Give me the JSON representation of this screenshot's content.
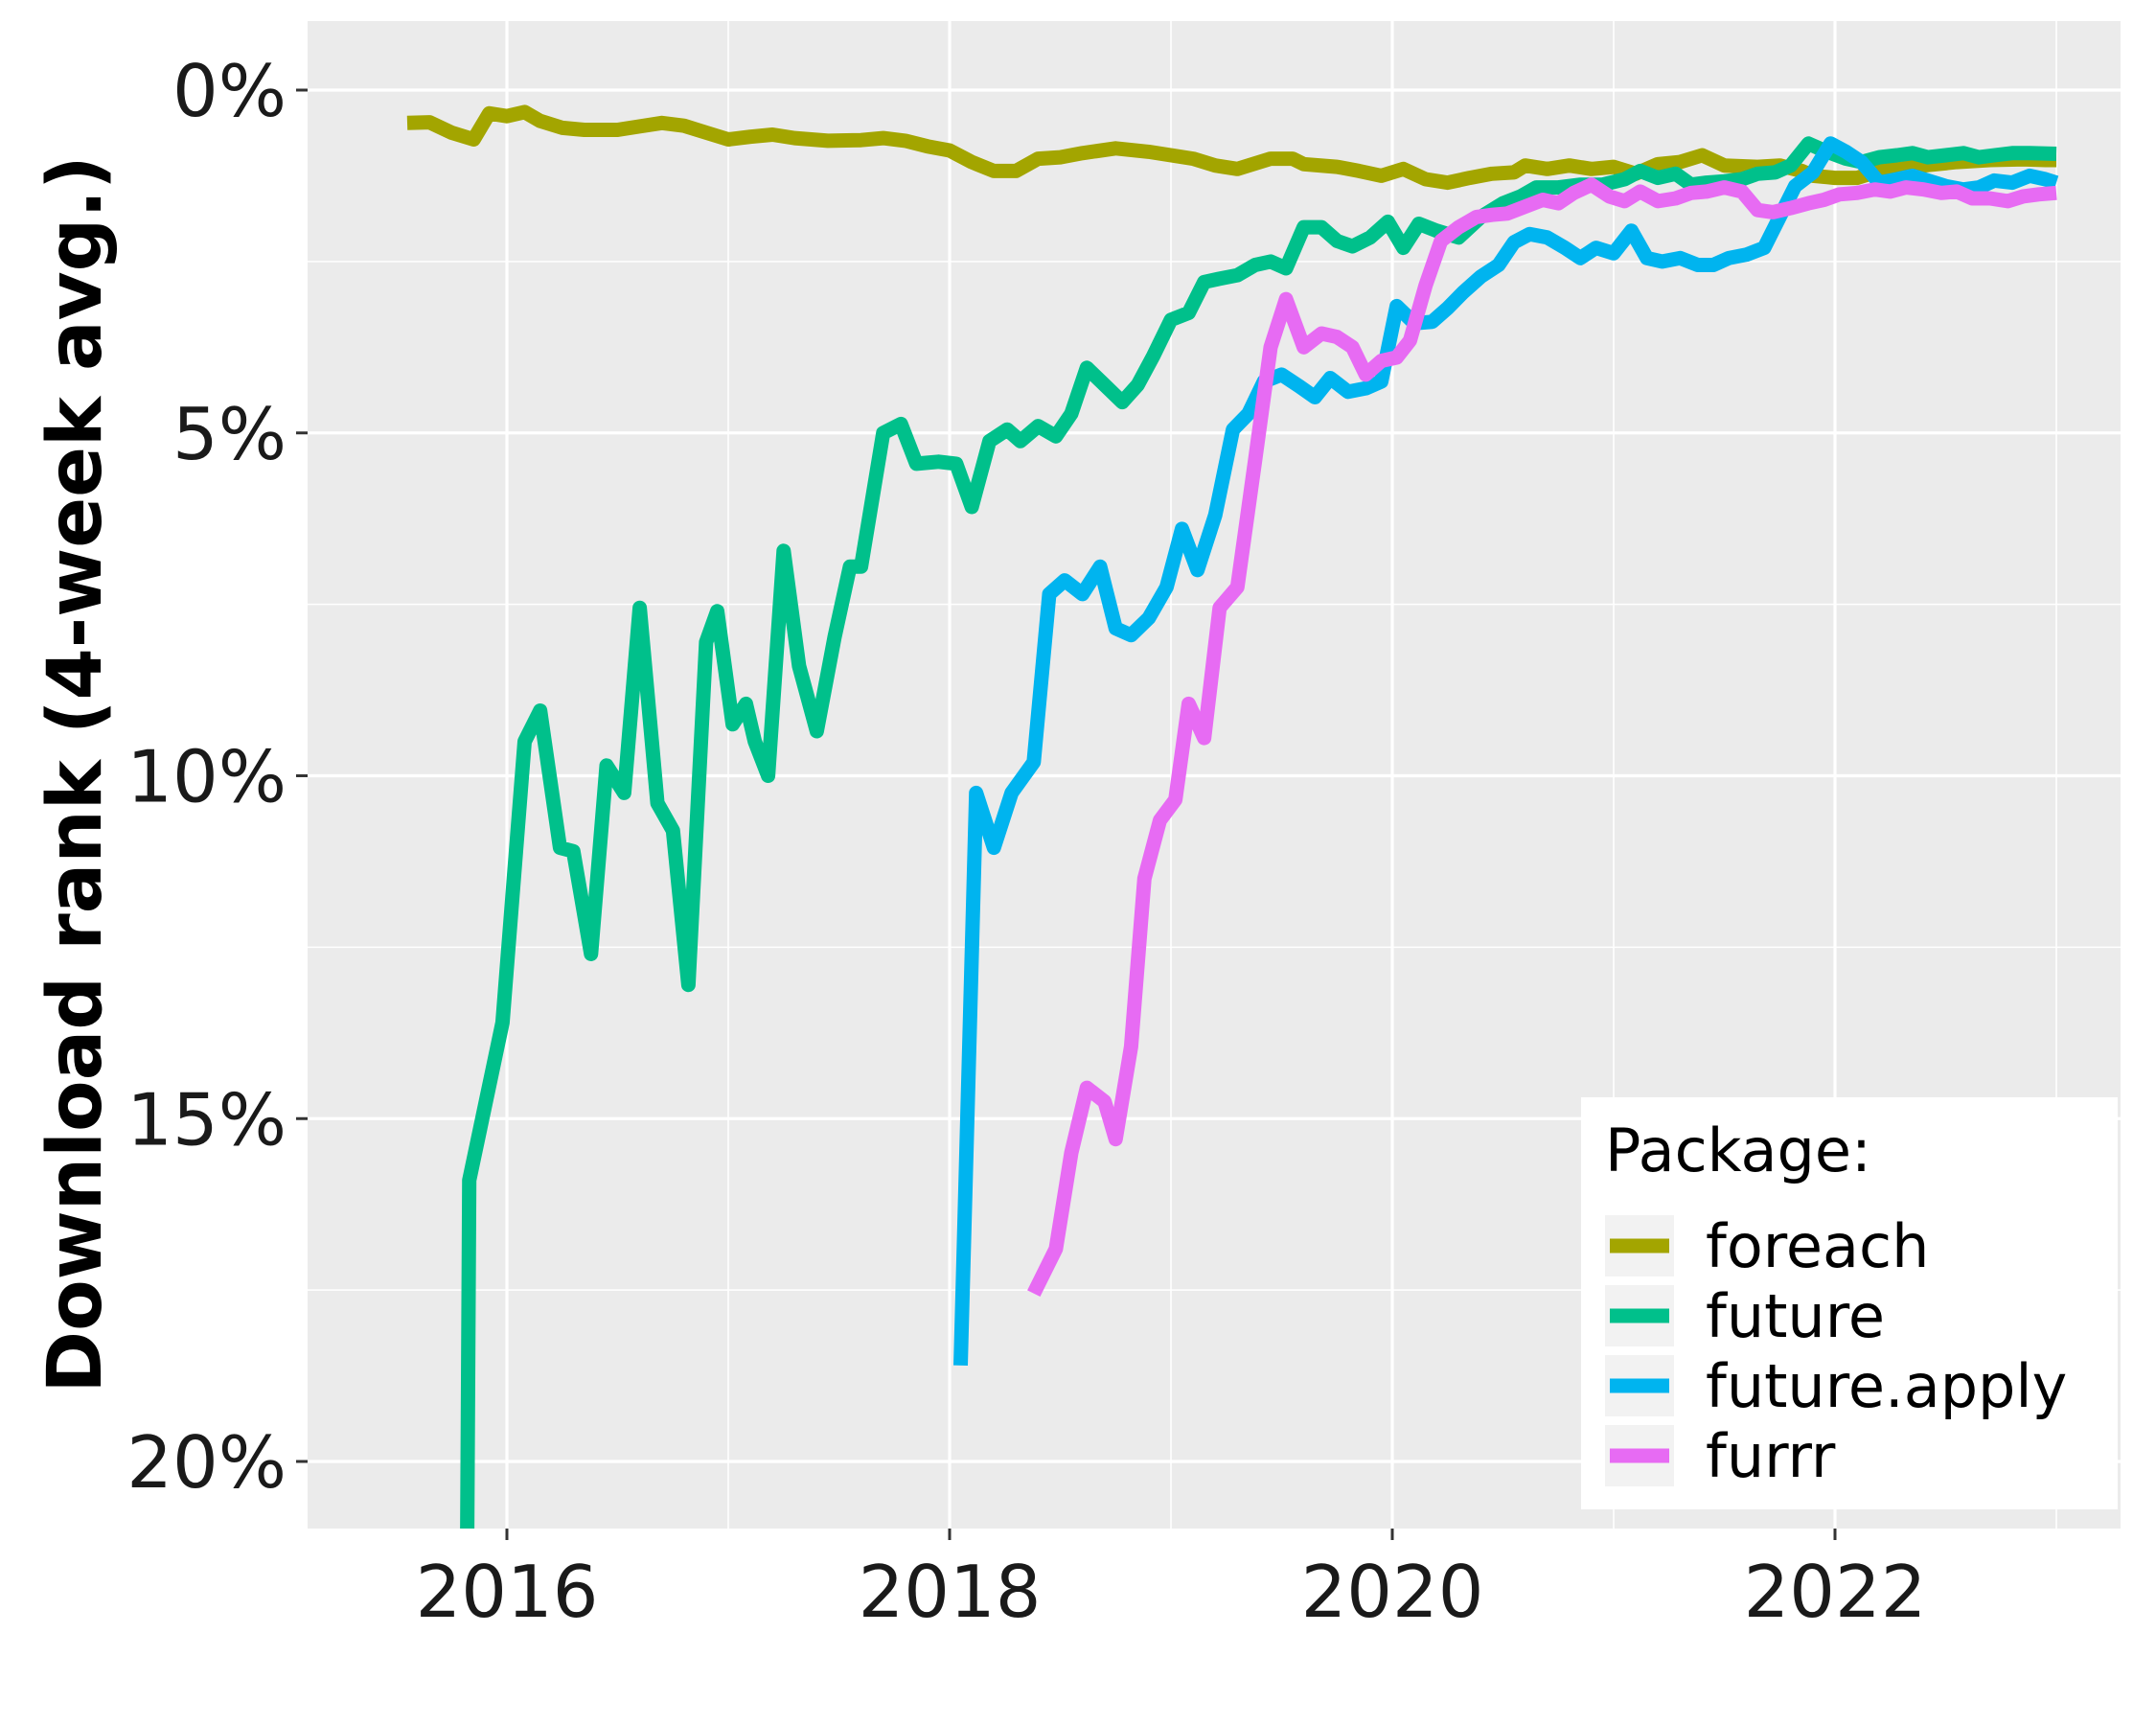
{
  "chart_data": {
    "type": "line",
    "title": "",
    "xlabel": "",
    "ylabel": "Download rank (4-week avg.)",
    "x_ticks": [
      "2016",
      "2018",
      "2020",
      "2022"
    ],
    "y_ticks": [
      "0%",
      "5%",
      "10%",
      "15%",
      "20%"
    ],
    "xlim": [
      2015.09,
      2023.27
    ],
    "ylim": [
      0,
      20
    ],
    "y_reversed": true,
    "grid": true,
    "legend": {
      "title": "Package:",
      "position": "bottom-right"
    },
    "series": [
      {
        "name": "foreach",
        "color": "#a3a500",
        "points": [
          [
            2015.55,
            0.48
          ],
          [
            2015.65,
            0.47
          ],
          [
            2015.75,
            0.62
          ],
          [
            2015.85,
            0.72
          ],
          [
            2015.92,
            0.34
          ],
          [
            2016.0,
            0.38
          ],
          [
            2016.08,
            0.32
          ],
          [
            2016.15,
            0.45
          ],
          [
            2016.25,
            0.55
          ],
          [
            2016.35,
            0.58
          ],
          [
            2016.5,
            0.58
          ],
          [
            2016.6,
            0.53
          ],
          [
            2016.7,
            0.48
          ],
          [
            2016.8,
            0.52
          ],
          [
            2016.9,
            0.62
          ],
          [
            2017.0,
            0.72
          ],
          [
            2017.1,
            0.68
          ],
          [
            2017.2,
            0.65
          ],
          [
            2017.3,
            0.7
          ],
          [
            2017.45,
            0.74
          ],
          [
            2017.6,
            0.73
          ],
          [
            2017.7,
            0.7
          ],
          [
            2017.8,
            0.74
          ],
          [
            2017.9,
            0.82
          ],
          [
            2018.0,
            0.88
          ],
          [
            2018.1,
            1.05
          ],
          [
            2018.2,
            1.18
          ],
          [
            2018.3,
            1.18
          ],
          [
            2018.4,
            1.0
          ],
          [
            2018.5,
            0.98
          ],
          [
            2018.6,
            0.92
          ],
          [
            2018.75,
            0.85
          ],
          [
            2018.9,
            0.9
          ],
          [
            2019.0,
            0.95
          ],
          [
            2019.1,
            1.0
          ],
          [
            2019.2,
            1.1
          ],
          [
            2019.3,
            1.15
          ],
          [
            2019.45,
            1.0
          ],
          [
            2019.55,
            1.0
          ],
          [
            2019.6,
            1.08
          ],
          [
            2019.75,
            1.12
          ],
          [
            2019.85,
            1.18
          ],
          [
            2019.95,
            1.25
          ],
          [
            2020.05,
            1.15
          ],
          [
            2020.15,
            1.3
          ],
          [
            2020.25,
            1.35
          ],
          [
            2020.35,
            1.28
          ],
          [
            2020.45,
            1.22
          ],
          [
            2020.55,
            1.2
          ],
          [
            2020.6,
            1.1
          ],
          [
            2020.7,
            1.15
          ],
          [
            2020.8,
            1.1
          ],
          [
            2020.9,
            1.15
          ],
          [
            2021.0,
            1.12
          ],
          [
            2021.1,
            1.22
          ],
          [
            2021.2,
            1.08
          ],
          [
            2021.3,
            1.05
          ],
          [
            2021.4,
            0.95
          ],
          [
            2021.5,
            1.1
          ],
          [
            2021.65,
            1.12
          ],
          [
            2021.75,
            1.1
          ],
          [
            2021.85,
            1.18
          ],
          [
            2021.9,
            1.25
          ],
          [
            2022.0,
            1.28
          ],
          [
            2022.1,
            1.28
          ],
          [
            2022.2,
            1.18
          ],
          [
            2022.3,
            1.15
          ],
          [
            2022.4,
            1.1
          ],
          [
            2022.55,
            1.05
          ],
          [
            2022.7,
            1.02
          ],
          [
            2022.85,
            1.01
          ],
          [
            2022.95,
            1.02
          ],
          [
            2023.0,
            1.02
          ]
        ]
      },
      {
        "name": "future",
        "color": "#00c08b",
        "points": [
          [
            2015.82,
            21.5
          ],
          [
            2015.83,
            15.9
          ],
          [
            2015.98,
            13.6
          ],
          [
            2016.08,
            9.5
          ],
          [
            2016.15,
            9.05
          ],
          [
            2016.24,
            11.05
          ],
          [
            2016.3,
            11.1
          ],
          [
            2016.38,
            12.6
          ],
          [
            2016.45,
            9.85
          ],
          [
            2016.53,
            10.25
          ],
          [
            2016.6,
            7.55
          ],
          [
            2016.68,
            10.4
          ],
          [
            2016.75,
            10.8
          ],
          [
            2016.82,
            13.05
          ],
          [
            2016.9,
            8.05
          ],
          [
            2016.95,
            7.6
          ],
          [
            2017.02,
            9.25
          ],
          [
            2017.08,
            8.95
          ],
          [
            2017.12,
            9.5
          ],
          [
            2017.18,
            10.0
          ],
          [
            2017.25,
            6.72
          ],
          [
            2017.32,
            8.4
          ],
          [
            2017.4,
            9.35
          ],
          [
            2017.48,
            7.98
          ],
          [
            2017.55,
            6.95
          ],
          [
            2017.6,
            6.95
          ],
          [
            2017.7,
            5.0
          ],
          [
            2017.78,
            4.87
          ],
          [
            2017.85,
            5.45
          ],
          [
            2017.95,
            5.42
          ],
          [
            2018.03,
            5.45
          ],
          [
            2018.1,
            6.08
          ],
          [
            2018.18,
            5.12
          ],
          [
            2018.26,
            4.95
          ],
          [
            2018.32,
            5.12
          ],
          [
            2018.4,
            4.9
          ],
          [
            2018.48,
            5.05
          ],
          [
            2018.55,
            4.72
          ],
          [
            2018.62,
            4.05
          ],
          [
            2018.7,
            4.3
          ],
          [
            2018.78,
            4.55
          ],
          [
            2018.85,
            4.3
          ],
          [
            2018.92,
            3.88
          ],
          [
            2019.0,
            3.35
          ],
          [
            2019.08,
            3.25
          ],
          [
            2019.15,
            2.8
          ],
          [
            2019.22,
            2.75
          ],
          [
            2019.3,
            2.7
          ],
          [
            2019.38,
            2.55
          ],
          [
            2019.45,
            2.5
          ],
          [
            2019.52,
            2.6
          ],
          [
            2019.6,
            2.0
          ],
          [
            2019.68,
            2.0
          ],
          [
            2019.75,
            2.2
          ],
          [
            2019.82,
            2.28
          ],
          [
            2019.9,
            2.15
          ],
          [
            2019.98,
            1.92
          ],
          [
            2020.05,
            2.3
          ],
          [
            2020.12,
            1.95
          ],
          [
            2020.2,
            2.05
          ],
          [
            2020.3,
            2.15
          ],
          [
            2020.4,
            1.85
          ],
          [
            2020.5,
            1.65
          ],
          [
            2020.58,
            1.55
          ],
          [
            2020.65,
            1.42
          ],
          [
            2020.75,
            1.42
          ],
          [
            2020.85,
            1.38
          ],
          [
            2020.95,
            1.38
          ],
          [
            2021.05,
            1.3
          ],
          [
            2021.12,
            1.18
          ],
          [
            2021.2,
            1.28
          ],
          [
            2021.28,
            1.22
          ],
          [
            2021.35,
            1.38
          ],
          [
            2021.42,
            1.35
          ],
          [
            2021.5,
            1.33
          ],
          [
            2021.58,
            1.3
          ],
          [
            2021.65,
            1.22
          ],
          [
            2021.73,
            1.2
          ],
          [
            2021.8,
            1.1
          ],
          [
            2021.88,
            0.78
          ],
          [
            2021.95,
            0.88
          ],
          [
            2022.05,
            1.0
          ],
          [
            2022.12,
            1.05
          ],
          [
            2022.2,
            0.98
          ],
          [
            2022.28,
            0.95
          ],
          [
            2022.35,
            0.92
          ],
          [
            2022.42,
            0.98
          ],
          [
            2022.5,
            0.95
          ],
          [
            2022.58,
            0.92
          ],
          [
            2022.65,
            0.98
          ],
          [
            2022.72,
            0.95
          ],
          [
            2022.8,
            0.92
          ],
          [
            2022.88,
            0.92
          ],
          [
            2023.0,
            0.93
          ]
        ]
      },
      {
        "name": "future.apply",
        "color": "#00b4ef",
        "points": [
          [
            2018.05,
            18.6
          ],
          [
            2018.12,
            10.25
          ],
          [
            2018.2,
            11.05
          ],
          [
            2018.28,
            10.25
          ],
          [
            2018.38,
            9.8
          ],
          [
            2018.45,
            7.35
          ],
          [
            2018.52,
            7.15
          ],
          [
            2018.6,
            7.35
          ],
          [
            2018.68,
            6.95
          ],
          [
            2018.75,
            7.85
          ],
          [
            2018.82,
            7.95
          ],
          [
            2018.9,
            7.7
          ],
          [
            2018.98,
            7.25
          ],
          [
            2019.05,
            6.4
          ],
          [
            2019.12,
            7.0
          ],
          [
            2019.2,
            6.2
          ],
          [
            2019.28,
            4.95
          ],
          [
            2019.35,
            4.72
          ],
          [
            2019.42,
            4.25
          ],
          [
            2019.5,
            4.15
          ],
          [
            2019.58,
            4.32
          ],
          [
            2019.65,
            4.48
          ],
          [
            2019.72,
            4.2
          ],
          [
            2019.8,
            4.4
          ],
          [
            2019.88,
            4.35
          ],
          [
            2019.95,
            4.25
          ],
          [
            2020.02,
            3.15
          ],
          [
            2020.1,
            3.4
          ],
          [
            2020.18,
            3.38
          ],
          [
            2020.25,
            3.18
          ],
          [
            2020.32,
            2.95
          ],
          [
            2020.4,
            2.72
          ],
          [
            2020.48,
            2.55
          ],
          [
            2020.55,
            2.22
          ],
          [
            2020.62,
            2.1
          ],
          [
            2020.7,
            2.15
          ],
          [
            2020.78,
            2.3
          ],
          [
            2020.85,
            2.45
          ],
          [
            2020.92,
            2.3
          ],
          [
            2021.0,
            2.38
          ],
          [
            2021.08,
            2.05
          ],
          [
            2021.15,
            2.45
          ],
          [
            2021.22,
            2.5
          ],
          [
            2021.3,
            2.45
          ],
          [
            2021.38,
            2.55
          ],
          [
            2021.45,
            2.55
          ],
          [
            2021.52,
            2.45
          ],
          [
            2021.6,
            2.4
          ],
          [
            2021.68,
            2.3
          ],
          [
            2021.75,
            1.85
          ],
          [
            2021.82,
            1.4
          ],
          [
            2021.9,
            1.2
          ],
          [
            2021.98,
            0.78
          ],
          [
            2022.05,
            0.9
          ],
          [
            2022.12,
            1.05
          ],
          [
            2022.2,
            1.35
          ],
          [
            2022.28,
            1.3
          ],
          [
            2022.35,
            1.25
          ],
          [
            2022.42,
            1.32
          ],
          [
            2022.5,
            1.4
          ],
          [
            2022.58,
            1.45
          ],
          [
            2022.65,
            1.42
          ],
          [
            2022.72,
            1.32
          ],
          [
            2022.8,
            1.35
          ],
          [
            2022.88,
            1.25
          ],
          [
            2022.95,
            1.3
          ],
          [
            2023.0,
            1.35
          ]
        ]
      },
      {
        "name": "furrr",
        "color": "#e76bf3",
        "points": [
          [
            2018.38,
            17.55
          ],
          [
            2018.48,
            16.9
          ],
          [
            2018.55,
            15.5
          ],
          [
            2018.62,
            14.55
          ],
          [
            2018.7,
            14.75
          ],
          [
            2018.75,
            15.3
          ],
          [
            2018.82,
            13.95
          ],
          [
            2018.88,
            11.5
          ],
          [
            2018.95,
            10.65
          ],
          [
            2019.02,
            10.35
          ],
          [
            2019.08,
            8.95
          ],
          [
            2019.15,
            9.45
          ],
          [
            2019.22,
            7.55
          ],
          [
            2019.3,
            7.25
          ],
          [
            2019.38,
            5.4
          ],
          [
            2019.45,
            3.75
          ],
          [
            2019.52,
            3.05
          ],
          [
            2019.6,
            3.75
          ],
          [
            2019.68,
            3.55
          ],
          [
            2019.75,
            3.6
          ],
          [
            2019.82,
            3.75
          ],
          [
            2019.88,
            4.15
          ],
          [
            2019.95,
            3.95
          ],
          [
            2020.02,
            3.9
          ],
          [
            2020.08,
            3.65
          ],
          [
            2020.15,
            2.85
          ],
          [
            2020.22,
            2.2
          ],
          [
            2020.3,
            2.0
          ],
          [
            2020.38,
            1.85
          ],
          [
            2020.45,
            1.82
          ],
          [
            2020.52,
            1.8
          ],
          [
            2020.6,
            1.7
          ],
          [
            2020.68,
            1.6
          ],
          [
            2020.75,
            1.65
          ],
          [
            2020.82,
            1.5
          ],
          [
            2020.9,
            1.38
          ],
          [
            2020.98,
            1.55
          ],
          [
            2021.05,
            1.62
          ],
          [
            2021.12,
            1.48
          ],
          [
            2021.2,
            1.62
          ],
          [
            2021.28,
            1.58
          ],
          [
            2021.35,
            1.5
          ],
          [
            2021.42,
            1.48
          ],
          [
            2021.5,
            1.42
          ],
          [
            2021.58,
            1.48
          ],
          [
            2021.65,
            1.75
          ],
          [
            2021.72,
            1.78
          ],
          [
            2021.8,
            1.72
          ],
          [
            2021.88,
            1.65
          ],
          [
            2021.95,
            1.6
          ],
          [
            2022.02,
            1.52
          ],
          [
            2022.1,
            1.5
          ],
          [
            2022.18,
            1.45
          ],
          [
            2022.25,
            1.48
          ],
          [
            2022.32,
            1.42
          ],
          [
            2022.4,
            1.45
          ],
          [
            2022.48,
            1.5
          ],
          [
            2022.55,
            1.48
          ],
          [
            2022.62,
            1.58
          ],
          [
            2022.7,
            1.58
          ],
          [
            2022.78,
            1.62
          ],
          [
            2022.85,
            1.55
          ],
          [
            2022.92,
            1.52
          ],
          [
            2023.0,
            1.5
          ]
        ]
      }
    ]
  }
}
